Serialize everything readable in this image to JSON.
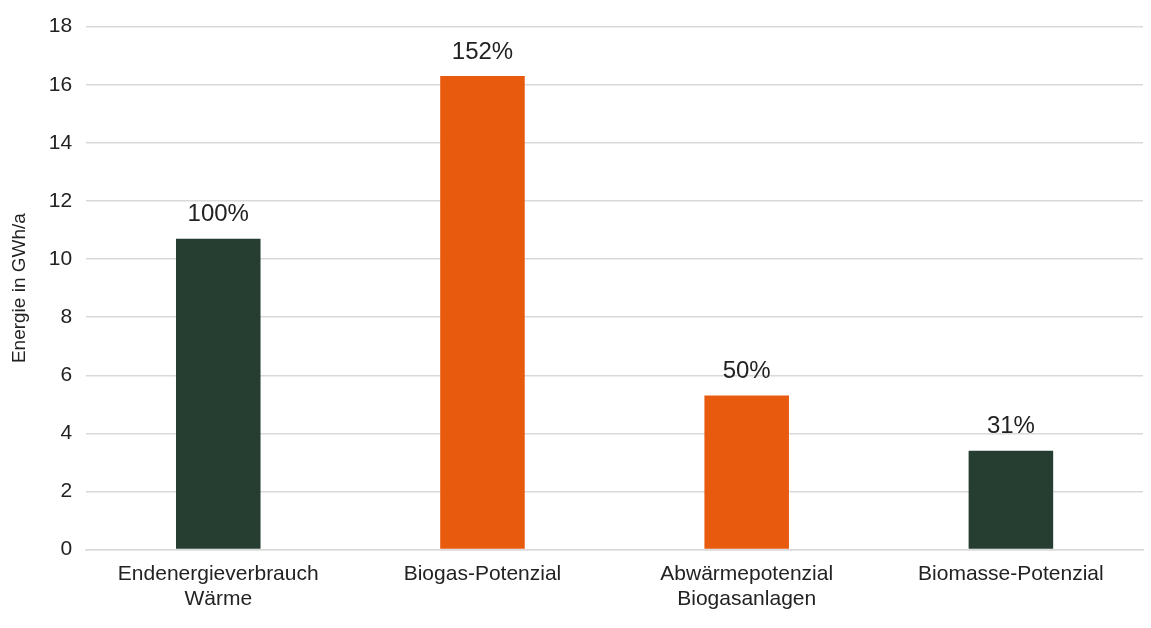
{
  "chart_data": {
    "type": "bar",
    "ylabel": "Energie in GWh/a",
    "categories": [
      "Endenergieverbrauch Wärme",
      "Biogas-Potenzial",
      "Abwärmepotenzial Biogasanlagen",
      "Biomasse-Potenzial"
    ],
    "values": [
      10.7,
      16.3,
      5.3,
      3.4
    ],
    "colors": [
      "#263d32",
      "#e85a0e",
      "#e85a0e",
      "#263d32"
    ],
    "annotations": [
      {
        "text": "100%",
        "x": "Endenergieverbrauch Wärme",
        "y": 10.7
      },
      {
        "text": "152%",
        "x": "Biogas-Potenzial",
        "y": 16.3
      },
      {
        "text": "50%",
        "x": "Abwärmepotenzial Biogasanlagen",
        "y": 5.3
      },
      {
        "text": "31%",
        "x": "Biomasse-Potenzial",
        "y": 3.4
      }
    ],
    "ylim": [
      0,
      18
    ],
    "yticks": [
      0,
      2,
      4,
      6,
      8,
      10,
      12,
      14,
      16,
      18
    ],
    "grid": "y",
    "legend": false
  }
}
